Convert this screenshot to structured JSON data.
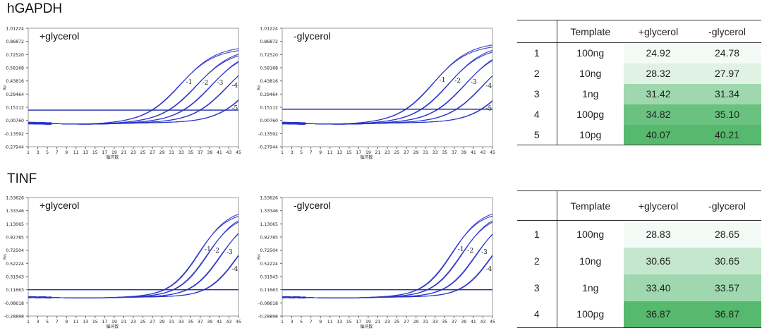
{
  "colors": {
    "curve": "#2a35c8",
    "threshold": "#1c2aa8",
    "cell_scale": [
      "#f4fbf6",
      "#dff2e4",
      "#c4e7cd",
      "#9fd8ae",
      "#6bc280",
      "#57b96e"
    ]
  },
  "sections": [
    {
      "title": "hGAPDH",
      "table": {
        "headers": [
          "",
          "Template",
          "+glycerol",
          "-glycerol"
        ],
        "rows": [
          {
            "idx": "1",
            "template": "100ng",
            "plus": "24.92",
            "minus": "24.78"
          },
          {
            "idx": "2",
            "template": "10ng",
            "plus": "28.32",
            "minus": "27.97"
          },
          {
            "idx": "3",
            "template": "1ng",
            "plus": "31.42",
            "minus": "31.34"
          },
          {
            "idx": "4",
            "template": "100pg",
            "plus": "34.82",
            "minus": "35.10"
          },
          {
            "idx": "5",
            "template": "10pg",
            "plus": "40.07",
            "minus": "40.21"
          }
        ]
      }
    },
    {
      "title": "TINF",
      "table": {
        "headers": [
          "",
          "Template",
          "+glycerol",
          "-glycerol"
        ],
        "rows": [
          {
            "idx": "1",
            "template": "100ng",
            "plus": "28.83",
            "minus": "28.65"
          },
          {
            "idx": "2",
            "template": "10ng",
            "plus": "30.65",
            "minus": "30.65"
          },
          {
            "idx": "3",
            "template": "1ng",
            "plus": "33.40",
            "minus": "33.57"
          },
          {
            "idx": "4",
            "template": "100pg",
            "plus": "36.87",
            "minus": "36.87"
          }
        ]
      }
    }
  ],
  "chart_data": [
    {
      "type": "line",
      "panel": "hGAPDH",
      "title": "+glycerol",
      "ylabel": "Rn",
      "xlabel": "循环数",
      "yticks": [
        "1.01224",
        "0.86872",
        "0.72520",
        "0.58168",
        "0.43816",
        "0.29464",
        "0.15112",
        "0.00760",
        "-0.13592",
        "-0.27944"
      ],
      "xticks": [
        "1",
        "3",
        "5",
        "7",
        "9",
        "11",
        "13",
        "15",
        "17",
        "19",
        "21",
        "23",
        "25",
        "27",
        "29",
        "31",
        "33",
        "35",
        "37",
        "39",
        "41",
        "43",
        "45"
      ],
      "ylim": [
        -0.27944,
        1.01224
      ],
      "xlim": [
        1,
        45
      ],
      "threshold": 0.12,
      "series": [
        {
          "name": "1",
          "ct": 24.92,
          "plateau": 0.84,
          "k": 0.27
        },
        {
          "name": "2",
          "ct": 28.32,
          "plateau": 0.82,
          "k": 0.27
        },
        {
          "name": "3",
          "ct": 31.42,
          "plateau": 0.82,
          "k": 0.27
        },
        {
          "name": "4",
          "ct": 34.82,
          "plateau": 0.8,
          "k": 0.27
        },
        {
          "name": "5",
          "ct": 40.07,
          "plateau": 0.8,
          "k": 0.27
        }
      ]
    },
    {
      "type": "line",
      "panel": "hGAPDH",
      "title": "-glycerol",
      "ylabel": "Rn",
      "xlabel": "循环数",
      "yticks": [
        "1.01224",
        "0.86872",
        "0.72520",
        "0.58168",
        "0.43816",
        "0.29464",
        "0.15112",
        "0.00760",
        "-0.13592",
        "-0.27944"
      ],
      "xticks": [
        "1",
        "3",
        "5",
        "7",
        "9",
        "11",
        "13",
        "15",
        "17",
        "19",
        "21",
        "23",
        "25",
        "27",
        "29",
        "31",
        "33",
        "35",
        "37",
        "39",
        "41",
        "43",
        "45"
      ],
      "ylim": [
        -0.27944,
        1.01224
      ],
      "xlim": [
        1,
        45
      ],
      "threshold": 0.13,
      "series": [
        {
          "name": "1",
          "ct": 24.78,
          "plateau": 0.88,
          "k": 0.27
        },
        {
          "name": "2",
          "ct": 27.97,
          "plateau": 0.86,
          "k": 0.27
        },
        {
          "name": "3",
          "ct": 31.34,
          "plateau": 0.84,
          "k": 0.27
        },
        {
          "name": "4",
          "ct": 35.1,
          "plateau": 0.82,
          "k": 0.27
        },
        {
          "name": "5",
          "ct": 40.21,
          "plateau": 0.8,
          "k": 0.27
        }
      ]
    },
    {
      "type": "line",
      "panel": "TINF",
      "title": "+glycerol",
      "ylabel": "Rn",
      "xlabel": "循环数",
      "yticks": [
        "1.53626",
        "1.33346",
        "1.13065",
        "0.92785",
        "0.72504",
        "0.52224",
        "0.31943",
        "0.11663",
        "-0.08618",
        "-0.28898"
      ],
      "xticks": [
        "1",
        "3",
        "5",
        "7",
        "9",
        "11",
        "13",
        "15",
        "17",
        "19",
        "21",
        "23",
        "25",
        "27",
        "29",
        "31",
        "33",
        "35",
        "37",
        "39",
        "41",
        "43",
        "45"
      ],
      "ylim": [
        -0.28898,
        1.53626
      ],
      "xlim": [
        1,
        45
      ],
      "threshold": 0.11663,
      "series": [
        {
          "name": "1",
          "ct": 28.83,
          "plateau": 1.36,
          "k": 0.33
        },
        {
          "name": "2",
          "ct": 30.65,
          "plateau": 1.32,
          "k": 0.33
        },
        {
          "name": "3",
          "ct": 33.4,
          "plateau": 1.28,
          "k": 0.33
        },
        {
          "name": "4",
          "ct": 36.87,
          "plateau": 1.24,
          "k": 0.33
        }
      ]
    },
    {
      "type": "line",
      "panel": "TINF",
      "title": "-glycerol",
      "ylabel": "Rn",
      "xlabel": "循环数",
      "yticks": [
        "1.53626",
        "1.33346",
        "1.13065",
        "0.92785",
        "0.72504",
        "0.52224",
        "0.31943",
        "0.11663",
        "-0.08618",
        "-0.28898"
      ],
      "xticks": [
        "1",
        "3",
        "5",
        "7",
        "9",
        "11",
        "13",
        "15",
        "17",
        "19",
        "21",
        "23",
        "25",
        "27",
        "29",
        "31",
        "33",
        "35",
        "37",
        "39",
        "41",
        "43",
        "45"
      ],
      "ylim": [
        -0.28898,
        1.53626
      ],
      "xlim": [
        1,
        45
      ],
      "threshold": 0.11663,
      "series": [
        {
          "name": "1",
          "ct": 28.65,
          "plateau": 1.36,
          "k": 0.33
        },
        {
          "name": "2",
          "ct": 30.65,
          "plateau": 1.32,
          "k": 0.33
        },
        {
          "name": "3",
          "ct": 33.57,
          "plateau": 1.28,
          "k": 0.33
        },
        {
          "name": "4",
          "ct": 36.87,
          "plateau": 1.24,
          "k": 0.33
        }
      ]
    }
  ]
}
